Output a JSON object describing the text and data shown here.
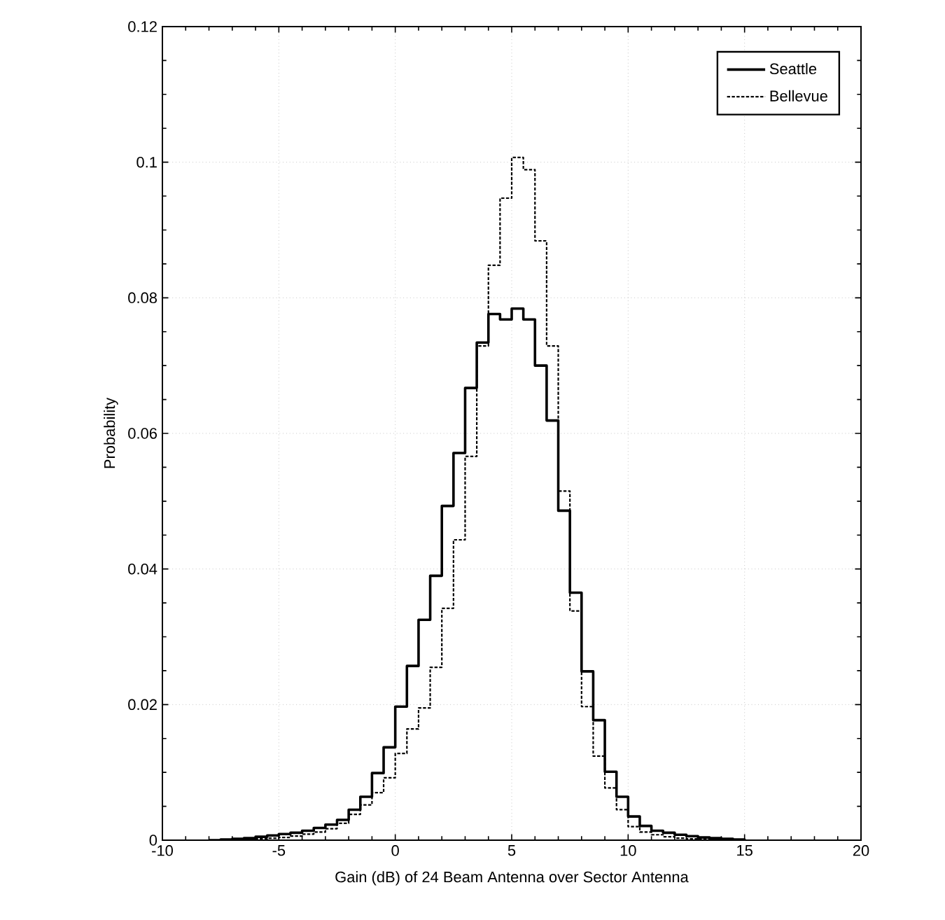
{
  "chart_data": {
    "type": "step",
    "xlabel": "Gain (dB) of 24 Beam Antenna over Sector Antenna",
    "ylabel": "Probability",
    "x": [
      -8,
      -7.5,
      -7,
      -6.5,
      -6,
      -5.5,
      -5,
      -4.5,
      -4,
      -3.5,
      -3,
      -2.5,
      -2,
      -1.5,
      -1,
      -0.5,
      0,
      0.5,
      1,
      1.5,
      2,
      2.5,
      3,
      3.5,
      4,
      4.5,
      5,
      5.5,
      6,
      6.5,
      7,
      7.5,
      8,
      8.5,
      9,
      9.5,
      10,
      10.5,
      11,
      11.5,
      12,
      12.5,
      13,
      13.5,
      14,
      14.5,
      15
    ],
    "series": [
      {
        "name": "Seattle",
        "color": "#000000",
        "line_style": "solid",
        "values": [
          0,
          0.0001,
          0.0002,
          0.0003,
          0.0005,
          0.0007,
          0.0009,
          0.0011,
          0.0014,
          0.0018,
          0.0023,
          0.003,
          0.0045,
          0.0064,
          0.0099,
          0.0137,
          0.0197,
          0.0257,
          0.0325,
          0.039,
          0.0493,
          0.0571,
          0.0667,
          0.0734,
          0.0776,
          0.0768,
          0.0784,
          0.0768,
          0.07,
          0.0619,
          0.0486,
          0.0365,
          0.0249,
          0.0177,
          0.0101,
          0.0064,
          0.0035,
          0.0021,
          0.0014,
          0.0011,
          0.0008,
          0.0006,
          0.0004,
          0.0003,
          0.0002,
          0.0001,
          0
        ]
      },
      {
        "name": "Bellevue",
        "color": "#000000",
        "line_style": "dashed",
        "values": [
          0,
          0,
          0,
          0.0001,
          0.0002,
          0.0003,
          0.0004,
          0.0006,
          0.0009,
          0.0012,
          0.0017,
          0.0025,
          0.0038,
          0.0052,
          0.007,
          0.0092,
          0.0128,
          0.0164,
          0.0195,
          0.0255,
          0.0342,
          0.0443,
          0.0566,
          0.0729,
          0.0848,
          0.0947,
          0.1007,
          0.0989,
          0.0884,
          0.0729,
          0.0515,
          0.0338,
          0.0197,
          0.0124,
          0.0077,
          0.0045,
          0.002,
          0.0012,
          0.0008,
          0.0005,
          0.0003,
          0.0002,
          0.0001,
          0,
          0,
          0,
          0
        ]
      }
    ],
    "xlim": [
      -10,
      20
    ],
    "xticks": [
      -10,
      -5,
      0,
      5,
      10,
      15,
      20
    ],
    "ylim": [
      0,
      0.12
    ],
    "yticks": [
      0,
      0.02,
      0.04,
      0.06,
      0.08,
      0.1,
      0.12
    ],
    "grid": true,
    "legend": "top right"
  }
}
